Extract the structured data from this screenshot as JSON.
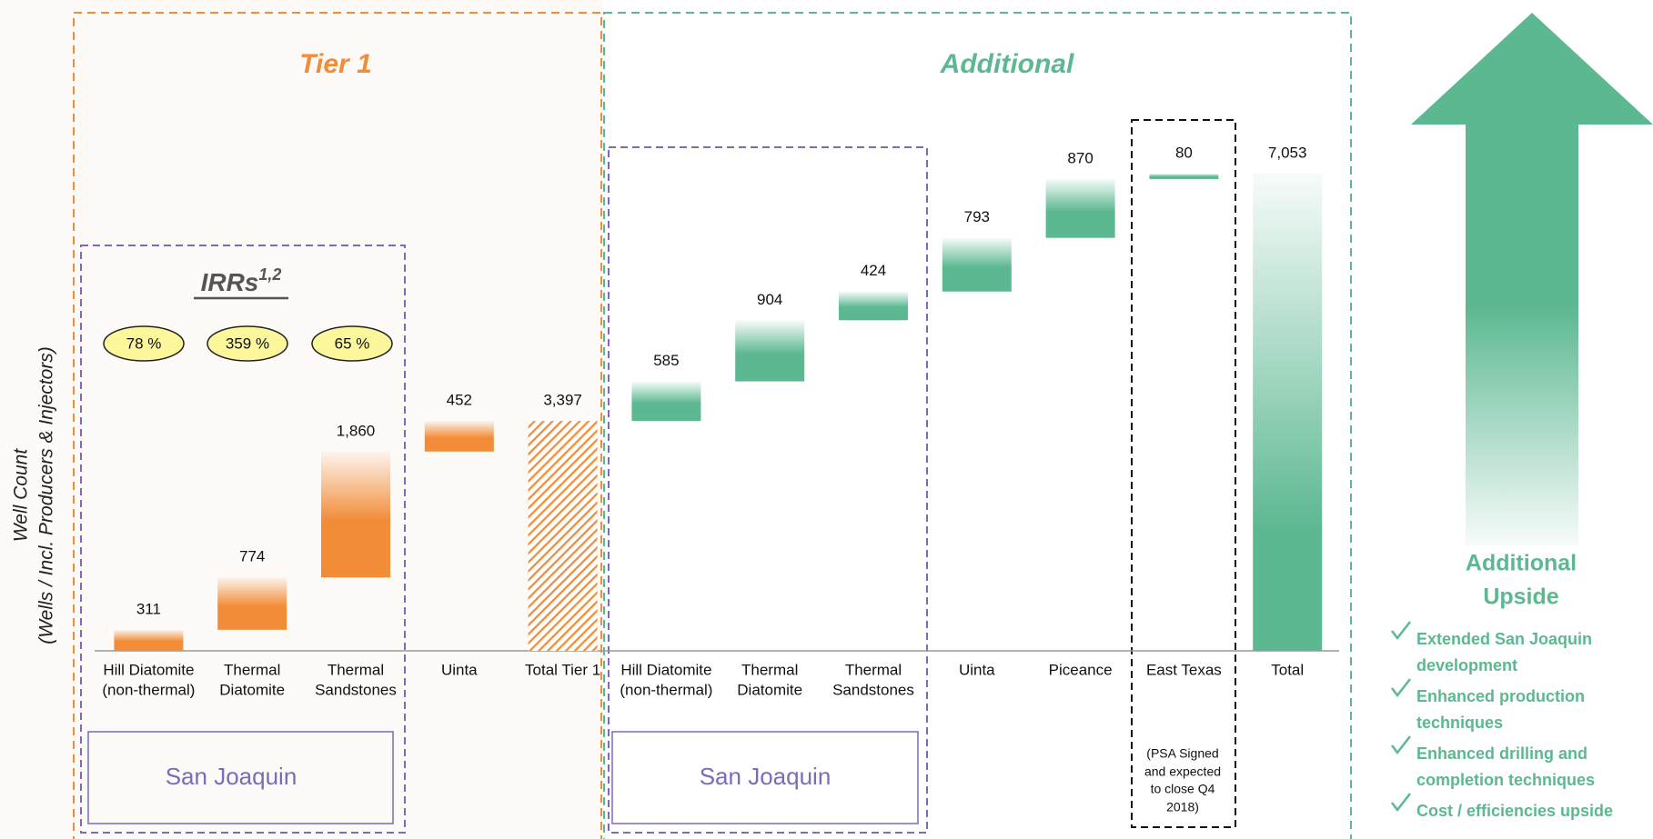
{
  "tier1_title": "Tier 1",
  "additional_title": "Additional",
  "irr": {
    "title": "IRRs",
    "superscript": "1,2",
    "values": [
      "78 %",
      "359 %",
      "65 %"
    ]
  },
  "region_labels": [
    "San Joaquin",
    "San Joaquin"
  ],
  "east_texas_note": [
    "(PSA Signed",
    "and expected",
    "to close Q4",
    "2018)"
  ],
  "upside": {
    "title": [
      "Additional",
      "Upside"
    ],
    "bullets": [
      [
        "Extended San Joaquin",
        "development"
      ],
      [
        "Enhanced production",
        "techniques"
      ],
      [
        "Enhanced drilling and",
        "completion techniques"
      ],
      [
        "Cost / efficiencies upside"
      ]
    ]
  },
  "chart_data": {
    "type": "waterfall",
    "y_label": [
      "Well Count",
      "(Wells / Incl. Producers & Injectors)"
    ],
    "categories": [
      [
        "Hill Diatomite",
        "(non-thermal)"
      ],
      [
        "Thermal",
        "Diatomite"
      ],
      [
        "Thermal",
        "Sandstones"
      ],
      [
        "Uinta"
      ],
      [
        "Total Tier 1"
      ],
      [
        "Hill Diatomite",
        "(non-thermal)"
      ],
      [
        "Thermal",
        "Diatomite"
      ],
      [
        "Thermal",
        "Sandstones"
      ],
      [
        "Uinta"
      ],
      [
        "Piceance"
      ],
      [
        "East Texas"
      ],
      [
        "Total"
      ]
    ],
    "values": [
      311,
      774,
      1860,
      452,
      3397,
      585,
      904,
      424,
      793,
      870,
      80,
      7053
    ],
    "value_labels": [
      "311",
      "774",
      "1,860",
      "452",
      "3,397",
      "585",
      "904",
      "424",
      "793",
      "870",
      "80",
      "7,053"
    ],
    "totals": [
      false,
      false,
      false,
      false,
      true,
      false,
      false,
      false,
      false,
      false,
      false,
      true
    ],
    "hatched": [
      false,
      false,
      false,
      false,
      true,
      false,
      false,
      false,
      false,
      false,
      false,
      false
    ],
    "colors": [
      "#f28c38",
      "#f28c38",
      "#f28c38",
      "#f28c38",
      "#f28c38",
      "#5cb891",
      "#5cb891",
      "#5cb891",
      "#5cb891",
      "#5cb891",
      "#5cb891",
      "#5cb891"
    ]
  }
}
